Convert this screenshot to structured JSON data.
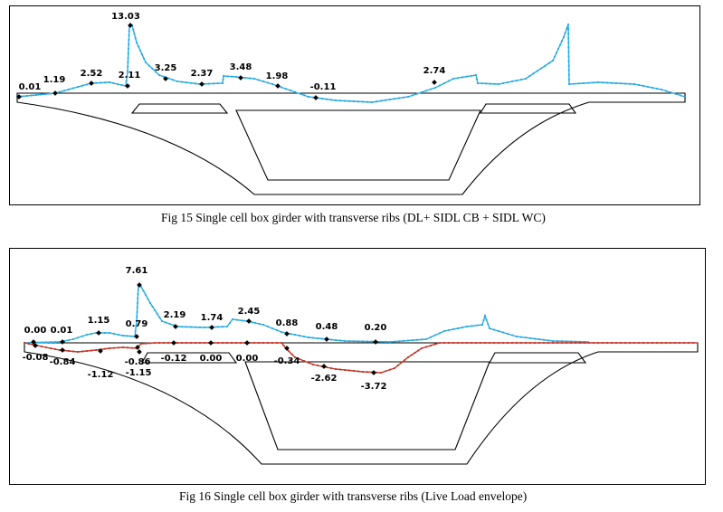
{
  "figures": [
    {
      "caption": "Fig 15 Single cell box girder with transverse ribs (DL+ SIDL CB + SIDL WC)",
      "labels": [
        "0.01",
        "1.19",
        "2.52",
        "2.11",
        "13.03",
        "3.25",
        "2.37",
        "3.48",
        "1.98",
        "-0.11",
        "2.74"
      ]
    },
    {
      "caption": "Fig 16 Single cell box girder with transverse ribs (Live Load envelope)",
      "labels_max": [
        "0.00",
        "0.01",
        "1.15",
        "0.79",
        "7.61",
        "2.19",
        "1.74",
        "2.45",
        "0.88",
        "0.48",
        "0.20"
      ],
      "labels_min": [
        "-0.08",
        "-0.84",
        "-1.12",
        "-0.86",
        "-1.15",
        "-0.12",
        "0.00",
        "0.00",
        "-0.34",
        "-2.62",
        "-3.72"
      ]
    }
  ],
  "colors": {
    "outline": "#000000",
    "max_curve": "#29abe2",
    "min_curve": "#c0392b"
  }
}
